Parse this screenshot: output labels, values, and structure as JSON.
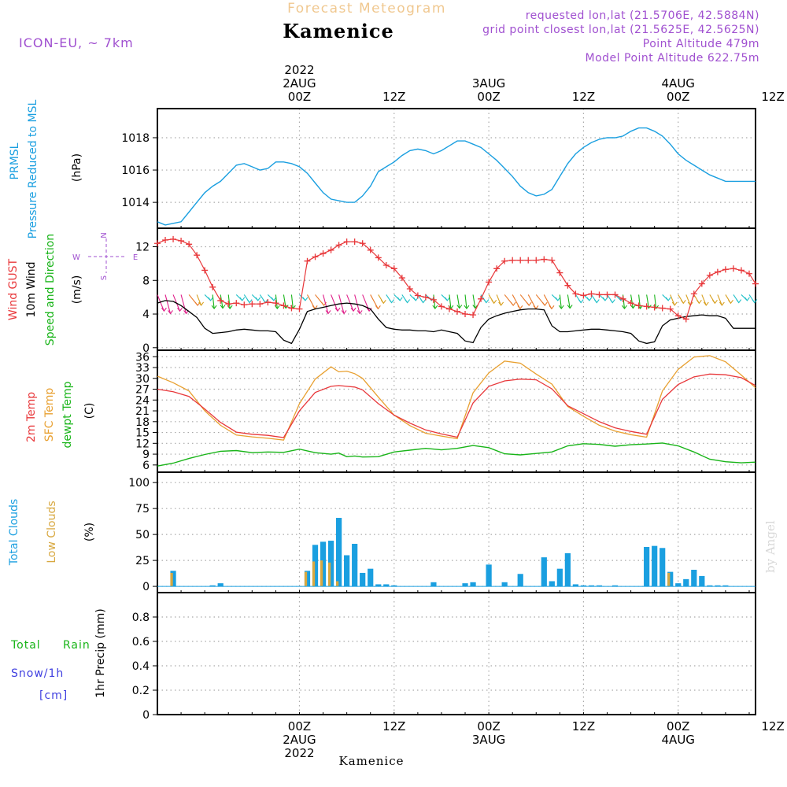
{
  "header": {
    "model_label": "ICON-EU, ~ 7km",
    "product_title": "Forecast Meteogram",
    "location": "Kamenice",
    "requested": "requested lon,lat (21.5706E, 42.5884N)",
    "grid_point": "grid point closest lon,lat (21.5625E, 42.5625N)",
    "point_altitude": "Point Altitude 479m",
    "model_altitude": "Model Point Altitude 622.75m",
    "watermark": "by Angel",
    "footer_location": "Kamenice"
  },
  "time_axis": {
    "top_labels": [
      {
        "t": 18,
        "lines": [
          "2022",
          "2AUG",
          "00Z"
        ]
      },
      {
        "t": 30,
        "lines": [
          "12Z"
        ]
      },
      {
        "t": 42,
        "lines": [
          "3AUG",
          "00Z"
        ]
      },
      {
        "t": 54,
        "lines": [
          "12Z"
        ]
      },
      {
        "t": 66,
        "lines": [
          "4AUG",
          "00Z"
        ]
      },
      {
        "t": 78,
        "lines": [
          "12Z"
        ]
      }
    ],
    "bottom_labels": [
      {
        "t": 18,
        "lines": [
          "00Z",
          "2AUG",
          "2022"
        ]
      },
      {
        "t": 30,
        "lines": [
          "12Z"
        ]
      },
      {
        "t": 42,
        "lines": [
          "00Z",
          "3AUG"
        ]
      },
      {
        "t": 54,
        "lines": [
          "12Z"
        ]
      },
      {
        "t": 66,
        "lines": [
          "00Z",
          "4AUG"
        ]
      },
      {
        "t": 78,
        "lines": [
          "12Z"
        ]
      }
    ],
    "units_note": "t = forecast hours from 1 Aug 06Z; 0 ... 75.8"
  },
  "panels": {
    "pressure": {
      "labels": [
        {
          "text": "PRMSL",
          "color": "#1a9fe0"
        },
        {
          "text": "Pressure Reduced to MSL",
          "color": "#1a9fe0"
        },
        {
          "text": "(hPa)",
          "color": "#000000"
        }
      ]
    },
    "wind": {
      "labels": [
        {
          "text": "Wind GUST",
          "color": "#e8383b"
        },
        {
          "text": "10m Wind",
          "color": "#000000"
        },
        {
          "text": "Speed and Direction",
          "color": "#18b418"
        },
        {
          "text": "(m/s)",
          "color": "#000000"
        }
      ],
      "compass": {
        "n": "N",
        "s": "S",
        "w": "W",
        "e": "E",
        "color": "#a050d0"
      }
    },
    "temperature": {
      "labels": [
        {
          "text": "2m Temp",
          "color": "#e8383b"
        },
        {
          "text": "SFC Temp",
          "color": "#e8a030"
        },
        {
          "text": "dewpt Temp",
          "color": "#18b418"
        },
        {
          "text": "(C)",
          "color": "#000000"
        }
      ]
    },
    "clouds": {
      "labels": [
        {
          "text": "Total Clouds",
          "color": "#1a9fe0"
        },
        {
          "text": "Low Clouds",
          "color": "#e8a030"
        },
        {
          "text": "(%)",
          "color": "#000000"
        }
      ]
    },
    "precip": {
      "labels": [
        {
          "text": "Total",
          "color": "#18b418"
        },
        {
          "text": "Rain",
          "color": "#18b418"
        },
        {
          "text": "Snow/1h",
          "color": "#4040e0"
        },
        {
          "text": "[cm]",
          "color": "#4040e0"
        },
        {
          "text": "1hr Precip (mm)",
          "color": "#000000"
        }
      ]
    }
  },
  "colors": {
    "pressure": "#1a9fe0",
    "gust": "#e8383b",
    "wind10m": "#000000",
    "temp2m": "#e8383b",
    "sfc_temp": "#e8a030",
    "dewpoint": "#18b418",
    "total_clouds": "#1a9fe0",
    "low_clouds": "#d8a840",
    "title_faded": "#f0c890",
    "meta_purple": "#a050d0"
  },
  "chart_data": [
    {
      "type": "line",
      "panel": "pressure",
      "ylabel": "(hPa)",
      "ylim": [
        1012.4,
        1019.8
      ],
      "yticks": [
        1014,
        1016,
        1018
      ],
      "grid": true,
      "series": [
        {
          "name": "PRMSL",
          "x": [
            0,
            1,
            2,
            3,
            4,
            5,
            6,
            7,
            8,
            9,
            10,
            11,
            12,
            13,
            14,
            15,
            16,
            17,
            18,
            19,
            20,
            21,
            22,
            23,
            24,
            25,
            26,
            27,
            28,
            29,
            30,
            31,
            32,
            33,
            34,
            35,
            36,
            37,
            38,
            39,
            40,
            41,
            42,
            43,
            44,
            45,
            46,
            47,
            48,
            49,
            50,
            51,
            52,
            53,
            54,
            55,
            56,
            57,
            58,
            59,
            60,
            61,
            62,
            63,
            64,
            65,
            66,
            67,
            68,
            69,
            70,
            71,
            72,
            73,
            74,
            75,
            75.8
          ],
          "values": [
            1012.8,
            1012.6,
            1012.7,
            1012.8,
            1013.4,
            1014.0,
            1014.6,
            1015.0,
            1015.3,
            1015.8,
            1016.3,
            1016.4,
            1016.2,
            1016.0,
            1016.1,
            1016.5,
            1016.5,
            1016.4,
            1016.2,
            1015.8,
            1015.2,
            1014.6,
            1014.2,
            1014.1,
            1014.0,
            1014.0,
            1014.4,
            1015.0,
            1015.9,
            1016.2,
            1016.5,
            1016.9,
            1017.2,
            1017.3,
            1017.2,
            1017.0,
            1017.2,
            1017.5,
            1017.8,
            1017.8,
            1017.6,
            1017.4,
            1017.0,
            1016.6,
            1016.1,
            1015.6,
            1015.0,
            1014.6,
            1014.4,
            1014.5,
            1014.8,
            1015.6,
            1016.4,
            1017.0,
            1017.4,
            1017.7,
            1017.9,
            1018.0,
            1018.0,
            1018.1,
            1018.4,
            1018.6,
            1018.6,
            1018.4,
            1018.1,
            1017.6,
            1017.0,
            1016.6,
            1016.3,
            1016.0,
            1015.7,
            1015.5,
            1015.3,
            1015.3,
            1015.3,
            1015.3,
            1015.3
          ]
        }
      ]
    },
    {
      "type": "line",
      "panel": "wind",
      "ylabel": "(m/s)",
      "ylim": [
        -0.3,
        14.2
      ],
      "yticks": [
        0,
        4,
        8,
        12
      ],
      "grid": true,
      "series": [
        {
          "name": "Wind GUST",
          "x": [
            0,
            1,
            2,
            3,
            4,
            5,
            6,
            7,
            8,
            9,
            10,
            11,
            12,
            13,
            14,
            15,
            16,
            17,
            18,
            19,
            20,
            21,
            22,
            23,
            24,
            25,
            26,
            27,
            28,
            29,
            30,
            31,
            32,
            33,
            34,
            35,
            36,
            37,
            38,
            39,
            40,
            41,
            42,
            43,
            44,
            45,
            46,
            47,
            48,
            49,
            50,
            51,
            52,
            53,
            54,
            55,
            56,
            57,
            58,
            59,
            60,
            61,
            62,
            63,
            64,
            65,
            66,
            67,
            68,
            69,
            70,
            71,
            72,
            73,
            74,
            75,
            75.8
          ],
          "values": [
            12.4,
            12.8,
            12.9,
            12.7,
            12.3,
            11.0,
            9.2,
            7.2,
            5.6,
            5.2,
            5.3,
            5.1,
            5.2,
            5.2,
            5.4,
            5.3,
            5.0,
            4.7,
            4.6,
            10.3,
            10.8,
            11.2,
            11.6,
            12.2,
            12.6,
            12.6,
            12.4,
            11.6,
            10.7,
            9.8,
            9.4,
            8.3,
            7.0,
            6.2,
            6.0,
            5.7,
            4.9,
            4.6,
            4.3,
            4.0,
            3.9,
            5.8,
            7.8,
            9.4,
            10.3,
            10.4,
            10.4,
            10.4,
            10.4,
            10.5,
            10.4,
            8.9,
            7.4,
            6.4,
            6.2,
            6.4,
            6.3,
            6.3,
            6.3,
            5.8,
            5.3,
            5.0,
            4.9,
            4.8,
            4.7,
            4.6,
            3.8,
            3.4,
            6.4,
            7.6,
            8.6,
            9.0,
            9.3,
            9.4,
            9.2,
            8.8,
            7.6
          ]
        },
        {
          "name": "10m Wind",
          "x": [
            0,
            1,
            2,
            3,
            4,
            5,
            6,
            7,
            8,
            9,
            10,
            11,
            12,
            13,
            14,
            15,
            16,
            17,
            18,
            19,
            20,
            21,
            22,
            23,
            24,
            25,
            26,
            27,
            28,
            29,
            30,
            31,
            32,
            33,
            34,
            35,
            36,
            37,
            38,
            39,
            40,
            41,
            42,
            43,
            44,
            45,
            46,
            47,
            48,
            49,
            50,
            51,
            52,
            53,
            54,
            55,
            56,
            57,
            58,
            59,
            60,
            61,
            62,
            63,
            64,
            65,
            66,
            67,
            68,
            69,
            70,
            71,
            72,
            73,
            74,
            75,
            75.8
          ],
          "values": [
            5.3,
            5.6,
            5.5,
            5.0,
            4.3,
            3.6,
            2.3,
            1.7,
            1.8,
            1.9,
            2.1,
            2.2,
            2.1,
            2.0,
            2.0,
            1.9,
            0.9,
            0.5,
            2.2,
            4.3,
            4.6,
            4.8,
            5.0,
            5.2,
            5.3,
            5.2,
            5.0,
            4.6,
            3.4,
            2.4,
            2.2,
            2.1,
            2.1,
            2.0,
            2.0,
            1.9,
            2.1,
            1.9,
            1.7,
            0.8,
            0.6,
            2.4,
            3.4,
            3.8,
            4.1,
            4.3,
            4.5,
            4.6,
            4.6,
            4.5,
            2.6,
            1.9,
            1.9,
            2.0,
            2.1,
            2.2,
            2.2,
            2.1,
            2.0,
            1.9,
            1.7,
            0.8,
            0.5,
            0.7,
            2.6,
            3.3,
            3.5,
            3.7,
            3.8,
            3.9,
            3.8,
            3.8,
            3.5,
            2.3,
            2.3,
            2.3,
            2.3
          ]
        },
        {
          "name": "Speed and Direction (barbs)",
          "note": "wind arrows drawn at fixed level; color varies by speed"
        }
      ]
    },
    {
      "type": "line",
      "panel": "temperature",
      "ylabel": "(C)",
      "ylim": [
        4,
        37.8
      ],
      "yticks": [
        6,
        9,
        12,
        15,
        18,
        21,
        24,
        27,
        30,
        33,
        36
      ],
      "grid": true,
      "series": [
        {
          "name": "2m Temp",
          "x": [
            0,
            2,
            4,
            6,
            8,
            10,
            12,
            14,
            16,
            18,
            20,
            22,
            23,
            24,
            25,
            26,
            28,
            30,
            32,
            34,
            36,
            38,
            40,
            42,
            44,
            46,
            48,
            50,
            52,
            54,
            56,
            58,
            60,
            62,
            64,
            66,
            68,
            70,
            72,
            74,
            75.8
          ],
          "values": [
            27.0,
            26.3,
            25.0,
            21.5,
            17.8,
            15.1,
            14.5,
            14.2,
            13.6,
            21.0,
            26.1,
            27.8,
            28.0,
            27.8,
            27.6,
            26.8,
            23.0,
            19.8,
            17.6,
            15.7,
            14.6,
            13.7,
            23.2,
            27.8,
            29.3,
            29.8,
            29.6,
            27.1,
            22.4,
            20.2,
            18.0,
            16.3,
            15.3,
            14.5,
            24.2,
            28.3,
            30.4,
            31.2,
            31.0,
            30.2,
            28.0
          ]
        },
        {
          "name": "SFC Temp",
          "x": [
            0,
            2,
            4,
            6,
            8,
            10,
            12,
            14,
            16,
            18,
            20,
            22,
            23,
            24,
            25,
            26,
            28,
            30,
            32,
            34,
            36,
            38,
            40,
            42,
            44,
            46,
            48,
            50,
            52,
            54,
            56,
            58,
            60,
            62,
            64,
            66,
            68,
            70,
            72,
            74,
            75.8
          ],
          "values": [
            30.6,
            28.8,
            26.5,
            21.0,
            17.0,
            14.3,
            13.8,
            13.4,
            12.9,
            23.0,
            29.8,
            33.2,
            31.8,
            32.0,
            31.3,
            30.0,
            24.8,
            19.8,
            16.9,
            14.8,
            14.0,
            13.3,
            26.0,
            31.5,
            34.8,
            34.2,
            31.2,
            28.4,
            22.2,
            19.5,
            17.0,
            15.4,
            14.4,
            13.7,
            26.5,
            32.5,
            35.9,
            36.3,
            34.6,
            30.9,
            27.4
          ]
        },
        {
          "name": "dewpt Temp",
          "x": [
            0,
            2,
            4,
            6,
            8,
            10,
            12,
            14,
            16,
            18,
            20,
            22,
            23,
            24,
            25,
            26,
            28,
            30,
            32,
            34,
            36,
            38,
            40,
            42,
            44,
            46,
            48,
            50,
            52,
            54,
            56,
            58,
            60,
            62,
            64,
            66,
            68,
            70,
            72,
            74,
            75.8
          ],
          "values": [
            5.7,
            6.5,
            7.8,
            8.9,
            9.8,
            10.0,
            9.4,
            9.6,
            9.5,
            10.4,
            9.4,
            9.0,
            9.3,
            8.3,
            8.5,
            8.2,
            8.3,
            9.6,
            10.1,
            10.6,
            10.2,
            10.6,
            11.4,
            10.8,
            9.1,
            8.8,
            9.2,
            9.6,
            11.3,
            11.9,
            11.7,
            11.2,
            11.6,
            11.8,
            12.1,
            11.3,
            9.6,
            7.6,
            6.9,
            6.6,
            6.8
          ]
        }
      ]
    },
    {
      "type": "bar",
      "panel": "clouds",
      "ylabel": "(%)",
      "ylim": [
        -6,
        110
      ],
      "yticks": [
        0,
        25,
        50,
        75,
        100
      ],
      "grid": true,
      "series": [
        {
          "name": "Total Clouds",
          "x": [
            2,
            7,
            8,
            19,
            20,
            21,
            22,
            23,
            24,
            25,
            26,
            27,
            28,
            29,
            30,
            35,
            39,
            40,
            42,
            44,
            46,
            49,
            50,
            51,
            52,
            53,
            54,
            55,
            56,
            58,
            62,
            63,
            64,
            65,
            66,
            67,
            68,
            69,
            70,
            71,
            72
          ],
          "values": [
            15,
            1,
            3,
            15,
            40,
            43,
            44,
            66,
            30,
            41,
            13,
            17,
            2,
            2,
            1,
            4,
            3,
            4,
            21,
            4,
            12,
            28,
            5,
            17,
            32,
            2,
            1,
            1,
            1,
            1,
            38,
            39,
            37,
            14,
            3,
            7,
            16,
            10,
            1,
            1,
            1
          ]
        },
        {
          "name": "Low Clouds",
          "x": [
            2,
            19,
            20,
            21,
            22,
            23,
            65
          ],
          "values": [
            13,
            14,
            24,
            25,
            23,
            5,
            13
          ]
        }
      ]
    },
    {
      "type": "line",
      "panel": "precip",
      "ylabel": "1hr Precip (mm)",
      "ylim": [
        0,
        1.0
      ],
      "yticks": [
        0,
        0.2,
        0.4,
        0.6,
        0.8
      ],
      "grid": true,
      "series": [
        {
          "name": "Total Rain",
          "values": []
        },
        {
          "name": "Snow/1h",
          "values": []
        }
      ]
    }
  ]
}
